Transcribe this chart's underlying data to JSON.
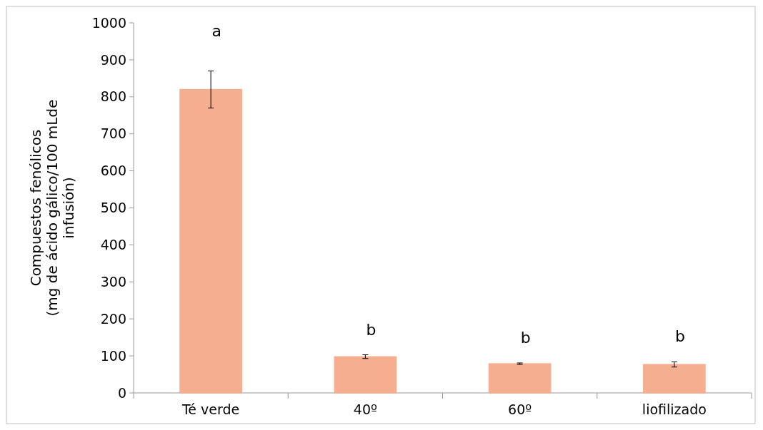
{
  "chart_data": {
    "type": "bar",
    "ylabel": "Compuestos fenólicos\n(mg de ácido gálico/100 mLde\ninfusión)",
    "categories": [
      "Té verde",
      "40º",
      "60º",
      "liofilizado"
    ],
    "values": [
      820,
      98,
      79,
      77
    ],
    "errors": [
      50,
      5,
      2,
      7
    ],
    "color": "#f5ae90",
    "ylim": [
      0,
      1000
    ],
    "yticks": [
      0,
      100,
      200,
      300,
      400,
      500,
      600,
      700,
      800,
      900,
      1000
    ],
    "grid": false,
    "annotations": [
      "a",
      "b",
      "b",
      "b"
    ]
  }
}
